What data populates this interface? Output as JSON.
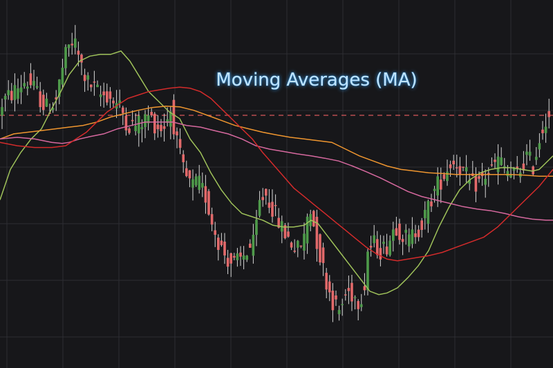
{
  "chart_data": {
    "type": "candlestick",
    "title": "Moving Averages (MA)",
    "xlabel": "",
    "ylabel": "",
    "ylim": [
      0,
      100
    ],
    "grid": true,
    "axes_labels_visible": false,
    "reference_line": {
      "value": 70,
      "style": "dashed",
      "color": "#d9575a"
    },
    "colors": {
      "up": "#4e9a4a",
      "down": "#e2696a",
      "wick": "#d8d8d8",
      "grid": "#2e2e33",
      "background": "#17171a"
    },
    "price_path": [
      [
        0,
        66
      ],
      [
        8,
        74
      ],
      [
        20,
        76
      ],
      [
        30,
        78
      ],
      [
        40,
        80
      ],
      [
        50,
        79
      ],
      [
        60,
        76
      ],
      [
        70,
        72
      ],
      [
        85,
        74
      ],
      [
        95,
        84
      ],
      [
        103,
        90
      ],
      [
        112,
        92
      ],
      [
        120,
        86
      ],
      [
        130,
        80
      ],
      [
        140,
        78
      ],
      [
        150,
        76
      ],
      [
        160,
        76
      ],
      [
        170,
        74
      ],
      [
        180,
        72
      ],
      [
        190,
        67
      ],
      [
        200,
        67
      ],
      [
        210,
        68
      ],
      [
        220,
        70
      ],
      [
        230,
        67
      ],
      [
        240,
        66
      ],
      [
        252,
        72
      ],
      [
        262,
        60
      ],
      [
        272,
        52
      ],
      [
        282,
        49
      ],
      [
        292,
        50
      ],
      [
        302,
        46
      ],
      [
        312,
        38
      ],
      [
        322,
        32
      ],
      [
        332,
        28
      ],
      [
        342,
        26
      ],
      [
        352,
        27
      ],
      [
        362,
        30
      ],
      [
        372,
        32
      ],
      [
        380,
        44
      ],
      [
        388,
        47
      ],
      [
        396,
        44
      ],
      [
        404,
        40
      ],
      [
        414,
        36
      ],
      [
        424,
        33
      ],
      [
        434,
        30
      ],
      [
        444,
        33
      ],
      [
        452,
        44
      ],
      [
        458,
        38
      ],
      [
        468,
        28
      ],
      [
        478,
        20
      ],
      [
        488,
        14
      ],
      [
        496,
        12
      ],
      [
        506,
        18
      ],
      [
        516,
        17
      ],
      [
        524,
        15
      ],
      [
        532,
        20
      ],
      [
        536,
        30
      ],
      [
        546,
        32
      ],
      [
        556,
        30
      ],
      [
        566,
        32
      ],
      [
        576,
        38
      ],
      [
        586,
        35
      ],
      [
        596,
        33
      ],
      [
        606,
        36
      ],
      [
        616,
        38
      ],
      [
        626,
        44
      ],
      [
        636,
        49
      ],
      [
        646,
        52
      ],
      [
        656,
        56
      ],
      [
        666,
        56
      ],
      [
        676,
        53
      ],
      [
        686,
        49
      ],
      [
        696,
        50
      ],
      [
        706,
        52
      ],
      [
        716,
        54
      ],
      [
        726,
        57
      ],
      [
        736,
        54
      ],
      [
        746,
        52
      ],
      [
        756,
        53
      ],
      [
        766,
        58
      ],
      [
        776,
        55
      ],
      [
        786,
        64
      ],
      [
        795,
        70
      ]
    ],
    "series": [
      {
        "color": "#9fc25a",
        "values": [
          [
            0,
            45
          ],
          [
            15,
            54
          ],
          [
            30,
            59
          ],
          [
            45,
            63
          ],
          [
            60,
            66
          ],
          [
            75,
            72
          ],
          [
            88,
            77
          ],
          [
            100,
            82
          ],
          [
            115,
            86
          ],
          [
            130,
            87.5
          ],
          [
            145,
            88
          ],
          [
            160,
            88
          ],
          [
            175,
            89
          ],
          [
            188,
            86
          ],
          [
            200,
            82
          ],
          [
            215,
            77
          ],
          [
            230,
            74
          ],
          [
            245,
            71
          ],
          [
            260,
            69
          ],
          [
            275,
            63
          ],
          [
            290,
            59
          ],
          [
            305,
            53
          ],
          [
            320,
            48
          ],
          [
            335,
            44
          ],
          [
            350,
            41
          ],
          [
            365,
            40
          ],
          [
            380,
            39
          ],
          [
            395,
            37.5
          ],
          [
            410,
            37
          ],
          [
            425,
            37
          ],
          [
            440,
            37.5
          ],
          [
            450,
            39
          ],
          [
            460,
            38
          ],
          [
            475,
            34
          ],
          [
            490,
            30
          ],
          [
            505,
            26
          ],
          [
            520,
            22
          ],
          [
            535,
            18
          ],
          [
            548,
            17
          ],
          [
            560,
            17.5
          ],
          [
            575,
            19
          ],
          [
            590,
            22
          ],
          [
            605,
            25.5
          ],
          [
            620,
            30
          ],
          [
            635,
            37
          ],
          [
            650,
            43
          ],
          [
            665,
            48
          ],
          [
            680,
            51
          ],
          [
            695,
            53
          ],
          [
            710,
            54
          ],
          [
            725,
            54.5
          ],
          [
            740,
            54.5
          ],
          [
            755,
            54
          ],
          [
            770,
            53.5
          ],
          [
            780,
            54
          ],
          [
            790,
            56
          ],
          [
            800,
            58
          ]
        ]
      },
      {
        "color": "#f0962f",
        "values": [
          [
            0,
            63
          ],
          [
            20,
            64.5
          ],
          [
            40,
            65
          ],
          [
            60,
            65.5
          ],
          [
            80,
            66
          ],
          [
            100,
            66.5
          ],
          [
            120,
            67
          ],
          [
            140,
            68
          ],
          [
            160,
            69.5
          ],
          [
            180,
            70.5
          ],
          [
            200,
            71.5
          ],
          [
            220,
            72.3
          ],
          [
            240,
            72.7
          ],
          [
            260,
            72.5
          ],
          [
            280,
            71.5
          ],
          [
            300,
            70
          ],
          [
            320,
            68.5
          ],
          [
            340,
            67
          ],
          [
            360,
            66
          ],
          [
            380,
            65
          ],
          [
            400,
            64.2
          ],
          [
            420,
            63.5
          ],
          [
            440,
            63
          ],
          [
            460,
            62.5
          ],
          [
            480,
            62
          ],
          [
            500,
            60
          ],
          [
            520,
            58
          ],
          [
            540,
            56.5
          ],
          [
            560,
            55
          ],
          [
            580,
            54
          ],
          [
            600,
            53.5
          ],
          [
            620,
            53
          ],
          [
            640,
            52.8
          ],
          [
            660,
            52.5
          ],
          [
            680,
            52.5
          ],
          [
            700,
            52.5
          ],
          [
            720,
            52.5
          ],
          [
            740,
            52.5
          ],
          [
            760,
            52.3
          ],
          [
            780,
            52
          ],
          [
            800,
            52
          ]
        ]
      },
      {
        "color": "#d7699f",
        "values": [
          [
            0,
            63
          ],
          [
            25,
            63.5
          ],
          [
            50,
            63
          ],
          [
            75,
            62
          ],
          [
            90,
            61.7
          ],
          [
            100,
            62
          ],
          [
            115,
            63
          ],
          [
            130,
            63.7
          ],
          [
            150,
            64.5
          ],
          [
            170,
            66
          ],
          [
            190,
            67
          ],
          [
            210,
            68
          ],
          [
            230,
            68
          ],
          [
            250,
            68
          ],
          [
            270,
            67
          ],
          [
            290,
            66.5
          ],
          [
            310,
            65.5
          ],
          [
            330,
            64.5
          ],
          [
            350,
            63
          ],
          [
            370,
            61
          ],
          [
            390,
            60
          ],
          [
            410,
            59.3
          ],
          [
            430,
            58.6
          ],
          [
            450,
            58
          ],
          [
            470,
            57.3
          ],
          [
            490,
            56.5
          ],
          [
            510,
            55
          ],
          [
            530,
            53.3
          ],
          [
            550,
            51.5
          ],
          [
            570,
            49.5
          ],
          [
            590,
            47.5
          ],
          [
            610,
            46
          ],
          [
            630,
            45
          ],
          [
            650,
            44
          ],
          [
            670,
            43
          ],
          [
            690,
            42.3
          ],
          [
            710,
            41.8
          ],
          [
            730,
            41
          ],
          [
            750,
            40
          ],
          [
            770,
            39.3
          ],
          [
            790,
            39
          ],
          [
            800,
            39
          ]
        ]
      },
      {
        "color": "#d42b2b",
        "values": [
          [
            0,
            62
          ],
          [
            25,
            61
          ],
          [
            50,
            60.5
          ],
          [
            75,
            60.5
          ],
          [
            95,
            61
          ],
          [
            110,
            63
          ],
          [
            125,
            65
          ],
          [
            140,
            68
          ],
          [
            155,
            71
          ],
          [
            170,
            73
          ],
          [
            185,
            75
          ],
          [
            200,
            76
          ],
          [
            215,
            77
          ],
          [
            230,
            77.5
          ],
          [
            245,
            78
          ],
          [
            260,
            78.3
          ],
          [
            275,
            78
          ],
          [
            290,
            77
          ],
          [
            305,
            75
          ],
          [
            320,
            72
          ],
          [
            335,
            69
          ],
          [
            350,
            66
          ],
          [
            365,
            63
          ],
          [
            380,
            59
          ],
          [
            395,
            55.5
          ],
          [
            410,
            52
          ],
          [
            425,
            48.5
          ],
          [
            440,
            46
          ],
          [
            455,
            43.5
          ],
          [
            470,
            41
          ],
          [
            485,
            38.5
          ],
          [
            500,
            36
          ],
          [
            515,
            33.5
          ],
          [
            530,
            31
          ],
          [
            545,
            29
          ],
          [
            560,
            27.5
          ],
          [
            575,
            27
          ],
          [
            590,
            27.5
          ],
          [
            605,
            28
          ],
          [
            620,
            28.5
          ],
          [
            640,
            29.5
          ],
          [
            660,
            31
          ],
          [
            680,
            32.5
          ],
          [
            700,
            34
          ],
          [
            720,
            37
          ],
          [
            740,
            41
          ],
          [
            760,
            45
          ],
          [
            780,
            49
          ],
          [
            800,
            54
          ]
        ]
      }
    ]
  }
}
